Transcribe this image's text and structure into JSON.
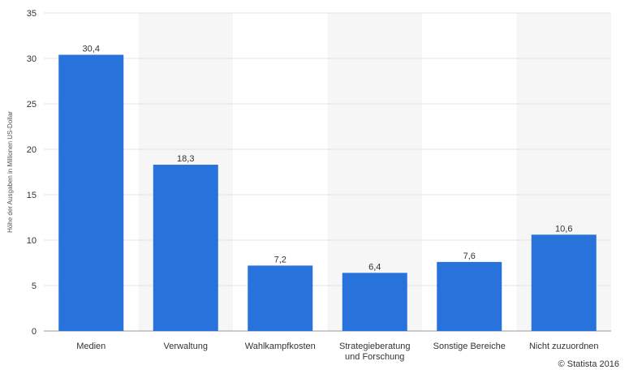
{
  "chart_data": {
    "type": "bar",
    "categories": [
      "Medien",
      "Verwaltung",
      "Wahlkampfkosten",
      "Strategieberatung und Forschung",
      "Sonstige Bereiche",
      "Nicht zuzuordnen"
    ],
    "category_lines": [
      [
        "Medien"
      ],
      [
        "Verwaltung"
      ],
      [
        "Wahlkampfkosten"
      ],
      [
        "Strategieberatung",
        "und Forschung"
      ],
      [
        "Sonstige Bereiche"
      ],
      [
        "Nicht zuzuordnen"
      ]
    ],
    "values": [
      30.4,
      18.3,
      7.2,
      6.4,
      7.6,
      10.6
    ],
    "value_labels": [
      "30,4",
      "18,3",
      "7,2",
      "6,4",
      "7,6",
      "10,6"
    ],
    "title": "",
    "xlabel": "",
    "ylabel": "Höhe der Ausgaben in Millionen US-Dollar",
    "ylim": [
      0,
      35
    ],
    "yticks": [
      0,
      5,
      10,
      15,
      20,
      25,
      30,
      35
    ],
    "grid": true,
    "bar_color": "#2872dc",
    "band_color": "#f6f6f6",
    "grid_color": "#e3e3e3"
  },
  "credit": "© Statista 2016"
}
